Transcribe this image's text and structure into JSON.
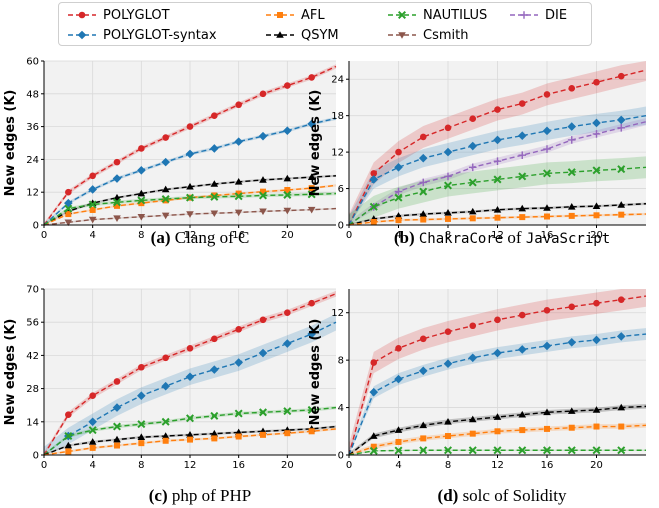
{
  "legend": [
    {
      "name": "POLYGLOT",
      "color": "#d62728",
      "marker": "circle"
    },
    {
      "name": "POLYGLOT-syntax",
      "color": "#1f77b4",
      "marker": "diamond"
    },
    {
      "name": "AFL",
      "color": "#ff7f0e",
      "marker": "square"
    },
    {
      "name": "QSYM",
      "color": "#000000",
      "marker": "triangle"
    },
    {
      "name": "NAUTILUS",
      "color": "#2ca02c",
      "marker": "x"
    },
    {
      "name": "Csmith",
      "color": "#8c564b",
      "marker": "tridown"
    },
    {
      "name": "DIE",
      "color": "#9467bd",
      "marker": "plus"
    }
  ],
  "captions": [
    {
      "label": "(a)",
      "parts": [
        {
          "text": " Clang of C",
          "mono": false
        }
      ]
    },
    {
      "label": "(b)",
      "parts": [
        {
          "text": " ",
          "mono": false
        },
        {
          "text": "ChakraCore",
          "mono": true
        },
        {
          "text": " of ",
          "mono": false
        },
        {
          "text": "JavaScript",
          "mono": true
        }
      ]
    },
    {
      "label": "(c)",
      "parts": [
        {
          "text": " php of PHP",
          "mono": false
        }
      ]
    },
    {
      "label": "(d)",
      "parts": [
        {
          "text": " solc of Solidity",
          "mono": false
        }
      ]
    }
  ],
  "chart_data": [
    {
      "type": "line",
      "ylabel": "New edges (K)",
      "xlim": [
        0,
        24
      ],
      "ylim": [
        0,
        60
      ],
      "xticks": [
        "0",
        "4",
        "8",
        "12",
        "16",
        "20"
      ],
      "yticks": [
        "0",
        "12",
        "24",
        "36",
        "48",
        "60"
      ],
      "grid": true,
      "x": [
        0,
        2,
        4,
        6,
        8,
        10,
        12,
        14,
        16,
        18,
        20,
        22,
        24
      ],
      "series": [
        {
          "name": "POLYGLOT",
          "values": [
            0,
            12,
            18,
            23,
            28,
            32,
            36,
            40,
            44,
            48,
            51,
            54,
            58
          ],
          "band": 0.8
        },
        {
          "name": "POLYGLOT-syntax",
          "values": [
            0,
            8,
            13,
            17,
            20,
            23,
            26,
            28,
            30.5,
            32.5,
            34.5,
            37,
            39
          ],
          "band": 0.6
        },
        {
          "name": "QSYM",
          "values": [
            0,
            5,
            8,
            10,
            11.5,
            13,
            14,
            15,
            15.8,
            16.5,
            17,
            17.5,
            18
          ],
          "band": 0.4
        },
        {
          "name": "AFL",
          "values": [
            0,
            4,
            5.5,
            7,
            8,
            9,
            10,
            10.8,
            11.5,
            12.2,
            12.8,
            13.5,
            14.5
          ],
          "band": 0.4
        },
        {
          "name": "NAUTILUS",
          "values": [
            0,
            6,
            7.5,
            8.3,
            9,
            9.5,
            10,
            10.3,
            10.5,
            10.8,
            11,
            11.2,
            11.5
          ],
          "band": 0.6
        },
        {
          "name": "Csmith",
          "values": [
            0,
            1,
            2,
            2.5,
            3,
            3.5,
            4,
            4.3,
            4.6,
            5,
            5.3,
            5.6,
            6
          ],
          "band": 0.3
        }
      ]
    },
    {
      "type": "line",
      "ylabel": "New edges (K)",
      "xlim": [
        0,
        24
      ],
      "ylim": [
        0,
        27
      ],
      "xticks": [
        "0",
        "4",
        "8",
        "12",
        "16",
        "20"
      ],
      "yticks": [
        "0",
        "6",
        "12",
        "18",
        "24"
      ],
      "grid": true,
      "x": [
        0,
        2,
        4,
        6,
        8,
        10,
        12,
        14,
        16,
        18,
        20,
        22,
        24
      ],
      "series": [
        {
          "name": "POLYGLOT",
          "values": [
            0,
            8.5,
            12,
            14.5,
            16,
            17.5,
            19,
            20,
            21.5,
            22.5,
            23.5,
            24.5,
            25.5
          ],
          "band": 1.8
        },
        {
          "name": "POLYGLOT-syntax",
          "values": [
            0,
            7.5,
            9.5,
            11,
            12,
            13,
            14,
            14.7,
            15.5,
            16.2,
            16.8,
            17.3,
            18
          ],
          "band": 1.5
        },
        {
          "name": "DIE",
          "values": [
            0,
            3,
            5.5,
            7,
            8,
            9.5,
            10.5,
            11.5,
            12.5,
            14,
            15,
            16,
            17
          ],
          "band": 0.6
        },
        {
          "name": "NAUTILUS",
          "values": [
            0,
            3,
            4.5,
            5.5,
            6.5,
            7,
            7.5,
            8,
            8.5,
            8.7,
            9,
            9.2,
            9.5
          ],
          "band": 1.8
        },
        {
          "name": "QSYM",
          "values": [
            0,
            1,
            1.5,
            1.8,
            2,
            2.2,
            2.5,
            2.7,
            2.8,
            3,
            3.1,
            3.3,
            3.5
          ],
          "band": 0.2
        },
        {
          "name": "AFL",
          "values": [
            0,
            0.5,
            0.8,
            0.9,
            1,
            1.1,
            1.2,
            1.3,
            1.4,
            1.5,
            1.6,
            1.7,
            1.8
          ],
          "band": 0.2
        }
      ]
    },
    {
      "type": "line",
      "ylabel": "New edges (K)",
      "xlim": [
        0,
        24
      ],
      "ylim": [
        0,
        70
      ],
      "xticks": [
        "0",
        "4",
        "8",
        "12",
        "16",
        "20"
      ],
      "yticks": [
        "0",
        "14",
        "28",
        "42",
        "56",
        "70"
      ],
      "grid": true,
      "x": [
        0,
        2,
        4,
        6,
        8,
        10,
        12,
        14,
        16,
        18,
        20,
        22,
        24
      ],
      "series": [
        {
          "name": "POLYGLOT",
          "values": [
            0,
            17,
            25,
            31,
            37,
            41,
            45,
            49,
            53,
            57,
            60,
            64,
            68
          ],
          "band": 1.2
        },
        {
          "name": "POLYGLOT-syntax",
          "values": [
            0,
            8,
            14,
            20,
            25,
            29,
            33,
            36,
            39,
            43,
            47,
            51,
            56
          ],
          "band": 3.5
        },
        {
          "name": "NAUTILUS",
          "values": [
            0,
            8,
            10.5,
            12,
            13,
            14,
            15.5,
            16.5,
            17.5,
            18,
            18.5,
            19,
            20
          ],
          "band": 0.7
        },
        {
          "name": "QSYM",
          "values": [
            0,
            4,
            5.5,
            6.5,
            7.5,
            8,
            8.5,
            9,
            9.5,
            10,
            10.5,
            11,
            12
          ],
          "band": 0.5
        },
        {
          "name": "AFL",
          "values": [
            0,
            1.5,
            3,
            4,
            5,
            6,
            6.5,
            7,
            7.8,
            8.5,
            9.2,
            10,
            11
          ],
          "band": 0.5
        }
      ]
    },
    {
      "type": "line",
      "ylabel": "New edges (K)",
      "xlim": [
        0,
        24
      ],
      "ylim": [
        0,
        14
      ],
      "xticks": [
        "0",
        "4",
        "8",
        "12",
        "16",
        "20"
      ],
      "yticks": [
        "0",
        "4",
        "8",
        "12"
      ],
      "grid": true,
      "x": [
        0,
        2,
        4,
        6,
        8,
        10,
        12,
        14,
        16,
        18,
        20,
        22,
        24
      ],
      "series": [
        {
          "name": "POLYGLOT",
          "values": [
            0,
            7.8,
            9,
            9.8,
            10.4,
            10.9,
            11.4,
            11.8,
            12.2,
            12.5,
            12.8,
            13.1,
            13.4
          ],
          "band": 0.9
        },
        {
          "name": "POLYGLOT-syntax",
          "values": [
            0,
            5.3,
            6.4,
            7.1,
            7.7,
            8.2,
            8.6,
            8.9,
            9.2,
            9.5,
            9.7,
            10,
            10.2
          ],
          "band": 0.5
        },
        {
          "name": "QSYM",
          "values": [
            0,
            1.6,
            2.1,
            2.5,
            2.8,
            3,
            3.2,
            3.4,
            3.6,
            3.7,
            3.8,
            4,
            4.1
          ],
          "band": 0.2
        },
        {
          "name": "AFL",
          "values": [
            0,
            0.7,
            1.1,
            1.4,
            1.6,
            1.8,
            2,
            2.1,
            2.2,
            2.3,
            2.4,
            2.4,
            2.5
          ],
          "band": 0.2
        },
        {
          "name": "NAUTILUS",
          "values": [
            0,
            0.35,
            0.38,
            0.4,
            0.4,
            0.4,
            0.4,
            0.4,
            0.4,
            0.4,
            0.4,
            0.4,
            0.4
          ],
          "band": 0.05
        }
      ]
    }
  ]
}
